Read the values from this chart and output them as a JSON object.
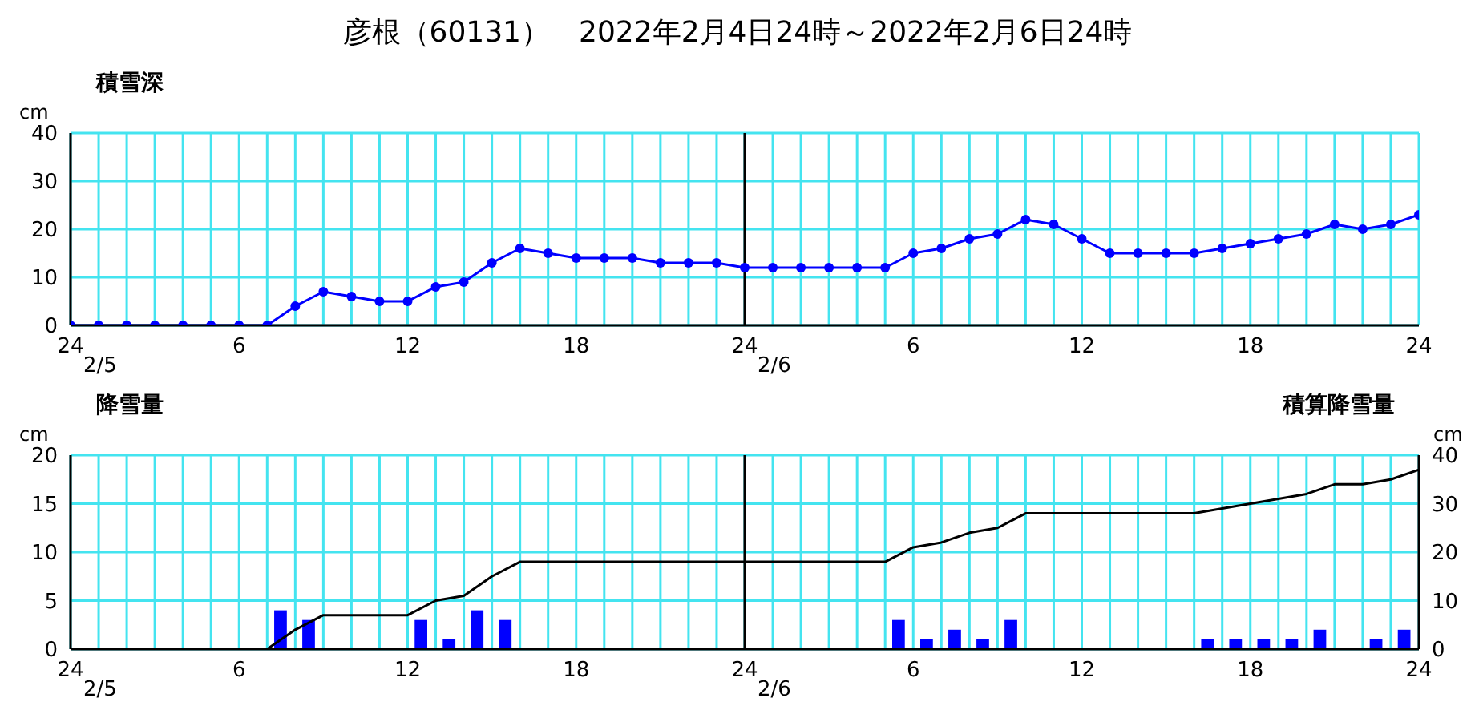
{
  "chart_data": [
    {
      "type": "line",
      "title": "彦根（60131）　2022年2月4日24時～2022年2月6日24時",
      "subtitle": "積雪深",
      "ylabel": "cm",
      "xlim": [
        "2022-02-05T00:00",
        "2022-02-07T00:00"
      ],
      "xticks": [
        {
          "value": "2022-02-05T00:00",
          "label": "24"
        },
        {
          "value": "2022-02-05T01:00",
          "label": null
        },
        {
          "value": "2022-02-05T02:00",
          "label": null
        },
        {
          "value": "2022-02-05T03:00",
          "label": null
        },
        {
          "value": "2022-02-05T04:00",
          "label": null
        },
        {
          "value": "2022-02-05T05:00",
          "label": null
        },
        {
          "value": "2022-02-05T06:00",
          "label": "6"
        },
        {
          "value": "2022-02-05T07:00",
          "label": null
        },
        {
          "value": "2022-02-05T08:00",
          "label": null
        },
        {
          "value": "2022-02-05T09:00",
          "label": null
        },
        {
          "value": "2022-02-05T10:00",
          "label": null
        },
        {
          "value": "2022-02-05T11:00",
          "label": null
        },
        {
          "value": "2022-02-05T12:00",
          "label": "12"
        },
        {
          "value": "2022-02-05T13:00",
          "label": null
        },
        {
          "value": "2022-02-05T14:00",
          "label": null
        },
        {
          "value": "2022-02-05T15:00",
          "label": null
        },
        {
          "value": "2022-02-05T16:00",
          "label": null
        },
        {
          "value": "2022-02-05T17:00",
          "label": null
        },
        {
          "value": "2022-02-05T18:00",
          "label": "18"
        },
        {
          "value": "2022-02-05T19:00",
          "label": null
        },
        {
          "value": "2022-02-05T20:00",
          "label": null
        },
        {
          "value": "2022-02-05T21:00",
          "label": null
        },
        {
          "value": "2022-02-05T22:00",
          "label": null
        },
        {
          "value": "2022-02-05T23:00",
          "label": null
        },
        {
          "value": "2022-02-06T00:00",
          "label": "24"
        },
        {
          "value": "2022-02-06T01:00",
          "label": null
        },
        {
          "value": "2022-02-06T02:00",
          "label": null
        },
        {
          "value": "2022-02-06T03:00",
          "label": null
        },
        {
          "value": "2022-02-06T04:00",
          "label": null
        },
        {
          "value": "2022-02-06T05:00",
          "label": null
        },
        {
          "value": "2022-02-06T06:00",
          "label": "6"
        },
        {
          "value": "2022-02-06T07:00",
          "label": null
        },
        {
          "value": "2022-02-06T08:00",
          "label": null
        },
        {
          "value": "2022-02-06T09:00",
          "label": null
        },
        {
          "value": "2022-02-06T10:00",
          "label": null
        },
        {
          "value": "2022-02-06T11:00",
          "label": null
        },
        {
          "value": "2022-02-06T12:00",
          "label": "12"
        },
        {
          "value": "2022-02-06T13:00",
          "label": null
        },
        {
          "value": "2022-02-06T14:00",
          "label": null
        },
        {
          "value": "2022-02-06T15:00",
          "label": null
        },
        {
          "value": "2022-02-06T16:00",
          "label": null
        },
        {
          "value": "2022-02-06T17:00",
          "label": null
        },
        {
          "value": "2022-02-06T18:00",
          "label": "18"
        },
        {
          "value": "2022-02-06T19:00",
          "label": null
        },
        {
          "value": "2022-02-06T20:00",
          "label": null
        },
        {
          "value": "2022-02-06T21:00",
          "label": null
        },
        {
          "value": "2022-02-06T22:00",
          "label": null
        },
        {
          "value": "2022-02-06T23:00",
          "label": null
        },
        {
          "value": "2022-02-07T00:00",
          "label": "24"
        }
      ],
      "ylim": [
        0,
        40
      ],
      "yticks": [
        0,
        10,
        20,
        30,
        40
      ],
      "grid": true,
      "marker": "circle",
      "line_style": "solid",
      "ref_lines": [
        {
          "axis": "x",
          "value": "2022-02-06T00:00",
          "color": "#000000"
        }
      ],
      "annotations": [
        "2/5",
        "2/6"
      ],
      "series": [
        {
          "color": "#0000ff",
          "x": [
            "2022-02-05T00:00",
            "2022-02-05T01:00",
            "2022-02-05T02:00",
            "2022-02-05T03:00",
            "2022-02-05T04:00",
            "2022-02-05T05:00",
            "2022-02-05T06:00",
            "2022-02-05T07:00",
            "2022-02-05T08:00",
            "2022-02-05T09:00",
            "2022-02-05T10:00",
            "2022-02-05T11:00",
            "2022-02-05T12:00",
            "2022-02-05T13:00",
            "2022-02-05T14:00",
            "2022-02-05T15:00",
            "2022-02-05T16:00",
            "2022-02-05T17:00",
            "2022-02-05T18:00",
            "2022-02-05T19:00",
            "2022-02-05T20:00",
            "2022-02-05T21:00",
            "2022-02-05T22:00",
            "2022-02-05T23:00",
            "2022-02-06T00:00",
            "2022-02-06T01:00",
            "2022-02-06T02:00",
            "2022-02-06T03:00",
            "2022-02-06T04:00",
            "2022-02-06T05:00",
            "2022-02-06T06:00",
            "2022-02-06T07:00",
            "2022-02-06T08:00",
            "2022-02-06T09:00",
            "2022-02-06T10:00",
            "2022-02-06T11:00",
            "2022-02-06T12:00",
            "2022-02-06T13:00",
            "2022-02-06T14:00",
            "2022-02-06T15:00",
            "2022-02-06T16:00",
            "2022-02-06T17:00",
            "2022-02-06T18:00",
            "2022-02-06T19:00",
            "2022-02-06T20:00",
            "2022-02-06T21:00",
            "2022-02-06T22:00",
            "2022-02-06T23:00",
            "2022-02-07T00:00"
          ],
          "values": [
            0,
            0,
            0,
            0,
            0,
            0,
            0,
            0,
            4,
            7,
            6,
            5,
            5,
            8,
            9,
            13,
            16,
            15,
            14,
            14,
            14,
            13,
            13,
            13,
            12,
            12,
            12,
            12,
            12,
            12,
            15,
            16,
            18,
            19,
            22,
            21,
            18,
            15,
            15,
            15,
            15,
            16,
            17,
            18,
            19,
            21,
            20,
            21,
            23
          ]
        }
      ]
    },
    {
      "type": "bar",
      "subtitle": "降雪量",
      "ylabel": "cm",
      "y2label": "cm",
      "xlim": [
        "2022-02-05T00:00",
        "2022-02-07T00:00"
      ],
      "xticks": [
        {
          "value": "2022-02-05T00:00",
          "label": "24"
        },
        {
          "value": "2022-02-05T01:00",
          "label": null
        },
        {
          "value": "2022-02-05T02:00",
          "label": null
        },
        {
          "value": "2022-02-05T03:00",
          "label": null
        },
        {
          "value": "2022-02-05T04:00",
          "label": null
        },
        {
          "value": "2022-02-05T05:00",
          "label": null
        },
        {
          "value": "2022-02-05T06:00",
          "label": "6"
        },
        {
          "value": "2022-02-05T07:00",
          "label": null
        },
        {
          "value": "2022-02-05T08:00",
          "label": null
        },
        {
          "value": "2022-02-05T09:00",
          "label": null
        },
        {
          "value": "2022-02-05T10:00",
          "label": null
        },
        {
          "value": "2022-02-05T11:00",
          "label": null
        },
        {
          "value": "2022-02-05T12:00",
          "label": "12"
        },
        {
          "value": "2022-02-05T13:00",
          "label": null
        },
        {
          "value": "2022-02-05T14:00",
          "label": null
        },
        {
          "value": "2022-02-05T15:00",
          "label": null
        },
        {
          "value": "2022-02-05T16:00",
          "label": null
        },
        {
          "value": "2022-02-05T17:00",
          "label": null
        },
        {
          "value": "2022-02-05T18:00",
          "label": "18"
        },
        {
          "value": "2022-02-05T19:00",
          "label": null
        },
        {
          "value": "2022-02-05T20:00",
          "label": null
        },
        {
          "value": "2022-02-05T21:00",
          "label": null
        },
        {
          "value": "2022-02-05T22:00",
          "label": null
        },
        {
          "value": "2022-02-05T23:00",
          "label": null
        },
        {
          "value": "2022-02-06T00:00",
          "label": "24"
        },
        {
          "value": "2022-02-06T01:00",
          "label": null
        },
        {
          "value": "2022-02-06T02:00",
          "label": null
        },
        {
          "value": "2022-02-06T03:00",
          "label": null
        },
        {
          "value": "2022-02-06T04:00",
          "label": null
        },
        {
          "value": "2022-02-06T05:00",
          "label": null
        },
        {
          "value": "2022-02-06T06:00",
          "label": "6"
        },
        {
          "value": "2022-02-06T07:00",
          "label": null
        },
        {
          "value": "2022-02-06T08:00",
          "label": null
        },
        {
          "value": "2022-02-06T09:00",
          "label": null
        },
        {
          "value": "2022-02-06T10:00",
          "label": null
        },
        {
          "value": "2022-02-06T11:00",
          "label": null
        },
        {
          "value": "2022-02-06T12:00",
          "label": "12"
        },
        {
          "value": "2022-02-06T13:00",
          "label": null
        },
        {
          "value": "2022-02-06T14:00",
          "label": null
        },
        {
          "value": "2022-02-06T15:00",
          "label": null
        },
        {
          "value": "2022-02-06T16:00",
          "label": null
        },
        {
          "value": "2022-02-06T17:00",
          "label": null
        },
        {
          "value": "2022-02-06T18:00",
          "label": "18"
        },
        {
          "value": "2022-02-06T19:00",
          "label": null
        },
        {
          "value": "2022-02-06T20:00",
          "label": null
        },
        {
          "value": "2022-02-06T21:00",
          "label": null
        },
        {
          "value": "2022-02-06T22:00",
          "label": null
        },
        {
          "value": "2022-02-06T23:00",
          "label": null
        },
        {
          "value": "2022-02-07T00:00",
          "label": "24"
        }
      ],
      "ylim": [
        0,
        20
      ],
      "yticks": [
        0,
        5,
        10,
        15,
        20
      ],
      "y2lim": [
        0,
        40
      ],
      "y2ticks": [
        0,
        10,
        20,
        30,
        40
      ],
      "grid": true,
      "line_style": "solid",
      "ref_lines": [
        {
          "axis": "x",
          "value": "2022-02-06T00:00",
          "color": "#000000"
        }
      ],
      "annotations": [
        "積算降雪量",
        "2/5",
        "2/6"
      ],
      "series": [
        {
          "color": "#0000ff",
          "x": [
            "2022-02-05T07:30",
            "2022-02-05T08:30",
            "2022-02-05T12:30",
            "2022-02-05T13:30",
            "2022-02-05T14:30",
            "2022-02-05T15:30",
            "2022-02-06T05:30",
            "2022-02-06T06:30",
            "2022-02-06T07:30",
            "2022-02-06T08:30",
            "2022-02-06T09:30",
            "2022-02-06T16:30",
            "2022-02-06T17:30",
            "2022-02-06T18:30",
            "2022-02-06T19:30",
            "2022-02-06T20:30",
            "2022-02-06T22:30",
            "2022-02-06T23:30"
          ],
          "values": [
            4,
            3,
            3,
            1,
            4,
            3,
            3,
            1,
            2,
            1,
            3,
            1,
            1,
            1,
            1,
            2,
            1,
            2
          ]
        },
        {
          "type": "line",
          "axis": "y2",
          "color": "#000000",
          "x": [
            "2022-02-05T07:00",
            "2022-02-05T08:00",
            "2022-02-05T09:00",
            "2022-02-05T12:00",
            "2022-02-05T13:00",
            "2022-02-05T14:00",
            "2022-02-05T15:00",
            "2022-02-05T16:00",
            "2022-02-06T05:00",
            "2022-02-06T06:00",
            "2022-02-06T07:00",
            "2022-02-06T08:00",
            "2022-02-06T09:00",
            "2022-02-06T10:00",
            "2022-02-06T16:00",
            "2022-02-06T17:00",
            "2022-02-06T18:00",
            "2022-02-06T19:00",
            "2022-02-06T20:00",
            "2022-02-06T21:00",
            "2022-02-06T22:00",
            "2022-02-06T23:00",
            "2022-02-07T00:00"
          ],
          "values": [
            0,
            4,
            7,
            7,
            10,
            11,
            15,
            18,
            18,
            21,
            22,
            24,
            25,
            28,
            28,
            29,
            30,
            31,
            32,
            34,
            34,
            35,
            37
          ]
        }
      ]
    }
  ]
}
